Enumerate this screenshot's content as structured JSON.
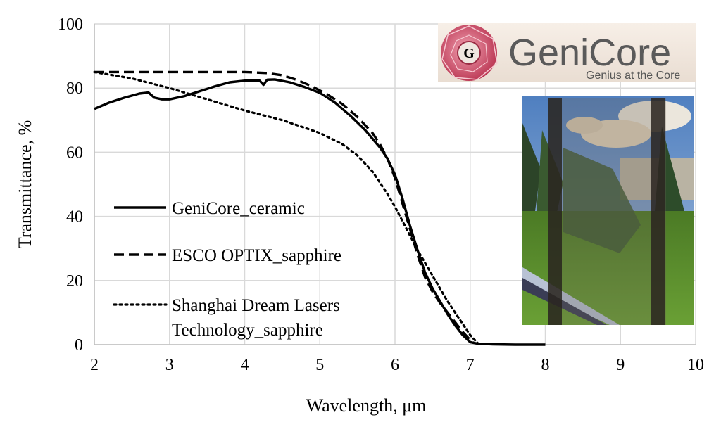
{
  "chart_data": {
    "type": "line",
    "xlabel": "Wavelength, μm",
    "ylabel": "Transmittance, %",
    "xlim": [
      2,
      10
    ],
    "ylim": [
      0,
      100
    ],
    "x_ticks": [
      "2",
      "3",
      "4",
      "5",
      "6",
      "7",
      "8",
      "9",
      "10"
    ],
    "y_ticks": [
      "0",
      "20",
      "40",
      "60",
      "80",
      "100"
    ],
    "grid": true,
    "legend_position": "left",
    "series": [
      {
        "name": "GeniCore_ceramic",
        "style": "solid",
        "x": [
          2.0,
          2.2,
          2.4,
          2.6,
          2.72,
          2.8,
          2.9,
          3.0,
          3.2,
          3.4,
          3.6,
          3.8,
          4.0,
          4.2,
          4.25,
          4.3,
          4.4,
          4.6,
          4.8,
          5.0,
          5.2,
          5.4,
          5.6,
          5.8,
          5.9,
          6.0,
          6.1,
          6.2,
          6.3,
          6.4,
          6.5,
          6.6,
          6.7,
          6.8,
          6.9,
          7.0,
          7.1,
          7.3,
          7.6,
          8.0
        ],
        "y": [
          73.5,
          75.5,
          77.0,
          78.3,
          78.6,
          77.0,
          76.5,
          76.5,
          77.5,
          79.0,
          80.5,
          81.8,
          82.3,
          82.3,
          81.0,
          82.6,
          82.7,
          81.8,
          80.3,
          78.5,
          75.5,
          71.5,
          67.0,
          61.5,
          58.0,
          53.0,
          45.5,
          37.0,
          29.5,
          22.5,
          17.5,
          13.5,
          9.5,
          6.0,
          3.0,
          0.8,
          0.3,
          0.1,
          0.0,
          0.0
        ]
      },
      {
        "name": "ESCO OPTIX_sapphire",
        "style": "dashed",
        "x": [
          2.0,
          2.5,
          3.0,
          3.5,
          4.0,
          4.3,
          4.5,
          4.7,
          4.9,
          5.1,
          5.3,
          5.5,
          5.7,
          5.8,
          5.9,
          6.0,
          6.1,
          6.2,
          6.3,
          6.4,
          6.5,
          6.6,
          6.7,
          6.8,
          6.9,
          7.0,
          7.05
        ],
        "y": [
          85.0,
          85.0,
          85.0,
          85.0,
          85.0,
          84.7,
          84.0,
          82.5,
          80.5,
          78.0,
          75.0,
          71.0,
          66.0,
          62.5,
          58.0,
          52.0,
          44.0,
          36.0,
          28.0,
          21.0,
          16.5,
          13.0,
          10.0,
          7.0,
          4.0,
          1.5,
          0.5
        ]
      },
      {
        "name": "Shanghai Dream Lasers Technology_sapphire",
        "style": "dotted",
        "x": [
          2.0,
          2.5,
          3.0,
          3.5,
          4.0,
          4.5,
          5.0,
          5.3,
          5.5,
          5.7,
          5.8,
          5.9,
          6.0,
          6.1,
          6.2,
          6.3,
          6.4,
          6.5,
          6.6,
          6.7,
          6.8,
          6.9,
          7.0,
          7.1
        ],
        "y": [
          85.0,
          83.0,
          80.0,
          76.5,
          73.0,
          70.0,
          66.0,
          62.5,
          59.0,
          54.0,
          50.5,
          47.0,
          43.0,
          38.5,
          34.0,
          29.5,
          25.5,
          21.5,
          17.5,
          13.5,
          10.0,
          6.5,
          3.0,
          0.5
        ]
      }
    ],
    "legend_lines": [
      [
        "GeniCore_ceramic"
      ],
      [
        "ESCO OPTIX_sapphire"
      ],
      [
        "Shanghai Dream Lasers",
        "Technology_sapphire"
      ]
    ]
  },
  "logo": {
    "brand": "GeniCore",
    "tagline": "Genius at the Core",
    "colors": {
      "gem": "#c5415f",
      "gem_light": "#e07a8f",
      "text": "#5a5a5a"
    }
  },
  "inset_photo": {
    "icon": "sapphire-window-photo",
    "colors": {
      "sky": "#6d94c8",
      "cloud": "#e8e2d6",
      "tree": "#2f4a2a",
      "grass": "#5b8a2c",
      "frame": "#2a2520"
    }
  }
}
